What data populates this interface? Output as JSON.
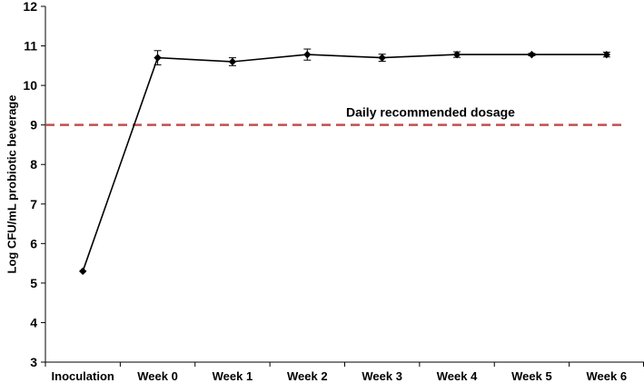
{
  "chart_data": {
    "type": "line",
    "categories": [
      "Inoculation",
      "Week 0",
      "Week 1",
      "Week 2",
      "Week 3",
      "Week 4",
      "Week 5",
      "Week 6"
    ],
    "series": [
      {
        "values": [
          5.3,
          10.7,
          10.6,
          10.78,
          10.7,
          10.78,
          10.78,
          10.78
        ],
        "errors": [
          0,
          0.18,
          0.1,
          0.14,
          0.09,
          0.07,
          0.03,
          0.06
        ],
        "color": "#000000",
        "marker": "diamond"
      }
    ],
    "reference_line": {
      "value": 9,
      "label": "Daily recommended dosage",
      "color": "#c0504d",
      "style": "dashed"
    },
    "title": "",
    "xlabel": "",
    "ylabel": "Log CFU/mL probiotic beverage",
    "ylim": [
      3,
      12
    ],
    "yticks": [
      3,
      4,
      5,
      6,
      7,
      8,
      9,
      10,
      11,
      12
    ],
    "grid": false,
    "legend": "none"
  }
}
